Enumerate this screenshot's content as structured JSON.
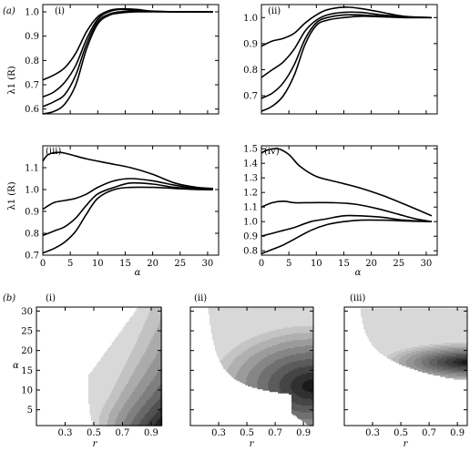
{
  "figure": {
    "part_a_label": "(a)",
    "part_b_label": "(b)"
  },
  "chart_data": [
    {
      "type": "line",
      "panel": "(i)",
      "ylabel": "λ1 (R)",
      "xlim": [
        0,
        32
      ],
      "ylim": [
        0.58,
        1.03
      ],
      "yticks": [
        0.6,
        0.7,
        0.8,
        0.9,
        1.0
      ],
      "ytick_labels": [
        "0.6",
        "0.7",
        "0.8",
        "0.9",
        "1.0"
      ],
      "series": [
        {
          "x": [
            0,
            2,
            4,
            6,
            8,
            10,
            12,
            14,
            17,
            20,
            25,
            31
          ],
          "values": [
            0.72,
            0.74,
            0.77,
            0.83,
            0.92,
            0.98,
            1.005,
            1.012,
            1.01,
            1.003,
            1.0,
            1.0
          ]
        },
        {
          "x": [
            0,
            2,
            4,
            6,
            8,
            10,
            12,
            14,
            17,
            20,
            25,
            31
          ],
          "values": [
            0.65,
            0.67,
            0.71,
            0.78,
            0.89,
            0.97,
            1.0,
            1.01,
            1.006,
            1.002,
            1.0,
            1.0
          ]
        },
        {
          "x": [
            0,
            2,
            4,
            6,
            8,
            10,
            12,
            14,
            17,
            20,
            25,
            31
          ],
          "values": [
            0.61,
            0.63,
            0.66,
            0.74,
            0.87,
            0.96,
            0.99,
            1.0,
            1.003,
            1.001,
            1.0,
            1.0
          ]
        },
        {
          "x": [
            0,
            2,
            4,
            6,
            8,
            10,
            12,
            14,
            17,
            20,
            25,
            31
          ],
          "values": [
            0.58,
            0.59,
            0.62,
            0.7,
            0.85,
            0.95,
            0.985,
            0.995,
            1.0,
            1.0,
            1.0,
            1.0
          ]
        }
      ]
    },
    {
      "type": "line",
      "panel": "(ii)",
      "ylabel": "",
      "xlim": [
        0,
        32
      ],
      "ylim": [
        0.63,
        1.05
      ],
      "yticks": [
        0.7,
        0.8,
        0.9,
        1.0
      ],
      "ytick_labels": [
        "0.7",
        "0.8",
        "0.9",
        "1.0"
      ],
      "series": [
        {
          "x": [
            0,
            2,
            4,
            6,
            8,
            10,
            12,
            15,
            18,
            22,
            26,
            31
          ],
          "values": [
            0.89,
            0.91,
            0.92,
            0.94,
            0.98,
            1.01,
            1.03,
            1.04,
            1.035,
            1.02,
            1.005,
            1.0
          ]
        },
        {
          "x": [
            0,
            2,
            4,
            6,
            8,
            10,
            12,
            15,
            18,
            22,
            26,
            31
          ],
          "values": [
            0.77,
            0.8,
            0.83,
            0.88,
            0.95,
            0.99,
            1.01,
            1.02,
            1.02,
            1.01,
            1.003,
            1.0
          ]
        },
        {
          "x": [
            0,
            2,
            4,
            6,
            8,
            10,
            12,
            15,
            18,
            22,
            26,
            31
          ],
          "values": [
            0.69,
            0.71,
            0.75,
            0.82,
            0.92,
            0.98,
            1.0,
            1.01,
            1.01,
            1.005,
            1.0,
            1.0
          ]
        },
        {
          "x": [
            0,
            2,
            4,
            6,
            8,
            10,
            12,
            15,
            18,
            22,
            26,
            31
          ],
          "values": [
            0.64,
            0.66,
            0.7,
            0.78,
            0.9,
            0.97,
            0.99,
            1.0,
            1.005,
            1.003,
            1.0,
            1.0
          ]
        }
      ]
    },
    {
      "type": "line",
      "panel": "(iii)",
      "ylabel": "λ1 (R)",
      "xlim": [
        0,
        32
      ],
      "ylim": [
        0.7,
        1.2
      ],
      "yticks": [
        0.7,
        0.8,
        0.9,
        1.0,
        1.1
      ],
      "ytick_labels": [
        "0.7",
        "0.8",
        "0.9",
        "1.0",
        "1.1"
      ],
      "xticks": [
        0,
        5,
        10,
        15,
        20,
        25,
        30
      ],
      "xtick_labels": [
        "0",
        "5",
        "10",
        "15",
        "20",
        "25",
        "30"
      ],
      "series": [
        {
          "x": [
            0,
            1,
            3,
            5,
            8,
            12,
            16,
            20,
            24,
            28,
            31
          ],
          "values": [
            1.13,
            1.16,
            1.17,
            1.16,
            1.14,
            1.12,
            1.1,
            1.07,
            1.03,
            1.01,
            1.005
          ]
        },
        {
          "x": [
            0,
            2,
            4,
            6,
            8,
            10,
            13,
            16,
            20,
            24,
            28,
            31
          ],
          "values": [
            0.91,
            0.94,
            0.95,
            0.96,
            0.98,
            1.01,
            1.04,
            1.05,
            1.04,
            1.02,
            1.005,
            1.0
          ]
        },
        {
          "x": [
            0,
            2,
            4,
            6,
            8,
            10,
            13,
            16,
            20,
            24,
            28,
            31
          ],
          "values": [
            0.79,
            0.81,
            0.83,
            0.87,
            0.93,
            0.98,
            1.01,
            1.03,
            1.025,
            1.01,
            1.002,
            1.0
          ]
        },
        {
          "x": [
            0,
            2,
            4,
            6,
            8,
            10,
            13,
            16,
            20,
            24,
            28,
            31
          ],
          "values": [
            0.71,
            0.73,
            0.76,
            0.81,
            0.89,
            0.96,
            1.0,
            1.01,
            1.01,
            1.005,
            1.0,
            1.0
          ]
        }
      ]
    },
    {
      "type": "line",
      "panel": "(iv)",
      "ylabel": "",
      "xlim": [
        0,
        32
      ],
      "ylim": [
        0.77,
        1.52
      ],
      "yticks": [
        0.8,
        0.9,
        1.0,
        1.1,
        1.2,
        1.3,
        1.4,
        1.5
      ],
      "ytick_labels": [
        "0.8",
        "0.9",
        "1.0",
        "1.1",
        "1.2",
        "1.3",
        "1.4",
        "1.5"
      ],
      "xticks": [
        0,
        5,
        10,
        15,
        20,
        25,
        30
      ],
      "xtick_labels": [
        "0",
        "5",
        "10",
        "15",
        "20",
        "25",
        "30"
      ],
      "series": [
        {
          "x": [
            0,
            1,
            3,
            5,
            7,
            10,
            14,
            18,
            22,
            26,
            31
          ],
          "values": [
            1.47,
            1.49,
            1.5,
            1.46,
            1.38,
            1.31,
            1.27,
            1.23,
            1.18,
            1.12,
            1.04
          ]
        },
        {
          "x": [
            0,
            2,
            4,
            6,
            9,
            13,
            17,
            21,
            25,
            28,
            31
          ],
          "values": [
            1.1,
            1.13,
            1.14,
            1.13,
            1.13,
            1.13,
            1.12,
            1.09,
            1.05,
            1.02,
            1.0
          ]
        },
        {
          "x": [
            0,
            2,
            4,
            6,
            9,
            12,
            15,
            18,
            22,
            26,
            31
          ],
          "values": [
            0.9,
            0.92,
            0.94,
            0.96,
            1.0,
            1.02,
            1.04,
            1.04,
            1.03,
            1.01,
            1.0
          ]
        },
        {
          "x": [
            0,
            2,
            4,
            6,
            9,
            12,
            15,
            18,
            22,
            26,
            31
          ],
          "values": [
            0.78,
            0.81,
            0.84,
            0.88,
            0.94,
            0.98,
            1.0,
            1.01,
            1.01,
            1.005,
            1.0
          ]
        }
      ]
    },
    {
      "type": "heatmap",
      "panel": "(i)",
      "xlabel": "r",
      "ylabel": "α",
      "xlim": [
        0.1,
        0.97
      ],
      "ylim": [
        1,
        31
      ],
      "xticks": [
        0.3,
        0.5,
        0.7,
        0.9
      ],
      "xtick_labels": [
        "0.3",
        "0.5",
        "0.7",
        "0.9"
      ],
      "yticks": [
        5,
        10,
        15,
        20,
        25,
        30
      ],
      "ytick_labels": [
        "5",
        "10",
        "15",
        "20",
        "25",
        "30"
      ],
      "levels": 9,
      "colors": [
        "#d8d8d8",
        "#c2c2c2",
        "#ababab",
        "#959595",
        "#7f7f7f",
        "#686868",
        "#515151",
        "#3b3b3b",
        "#222222"
      ]
    },
    {
      "type": "heatmap",
      "panel": "(ii)",
      "xlabel": "r",
      "xlim": [
        0.1,
        0.97
      ],
      "ylim": [
        1,
        31
      ],
      "xticks": [
        0.3,
        0.5,
        0.7,
        0.9
      ],
      "xtick_labels": [
        "0.3",
        "0.5",
        "0.7",
        "0.9"
      ],
      "levels": 10,
      "colors": [
        "#d8d8d8",
        "#c4c4c4",
        "#b0b0b0",
        "#9b9b9b",
        "#868686",
        "#707070",
        "#5b5b5b",
        "#454545",
        "#303030",
        "#1a1a1a"
      ]
    },
    {
      "type": "heatmap",
      "panel": "(iii)",
      "xlabel": "r",
      "xlim": [
        0.1,
        0.97
      ],
      "ylim": [
        1,
        31
      ],
      "xticks": [
        0.3,
        0.5,
        0.7,
        0.9
      ],
      "xtick_labels": [
        "0.3",
        "0.5",
        "0.7",
        "0.9"
      ],
      "levels": 12,
      "colors": [
        "#d8d8d8",
        "#c8c8c8",
        "#b8b8b8",
        "#a7a7a7",
        "#969696",
        "#858585",
        "#737373",
        "#626262",
        "#505050",
        "#3e3e3e",
        "#2c2c2c",
        "#1a1a1a"
      ]
    }
  ]
}
